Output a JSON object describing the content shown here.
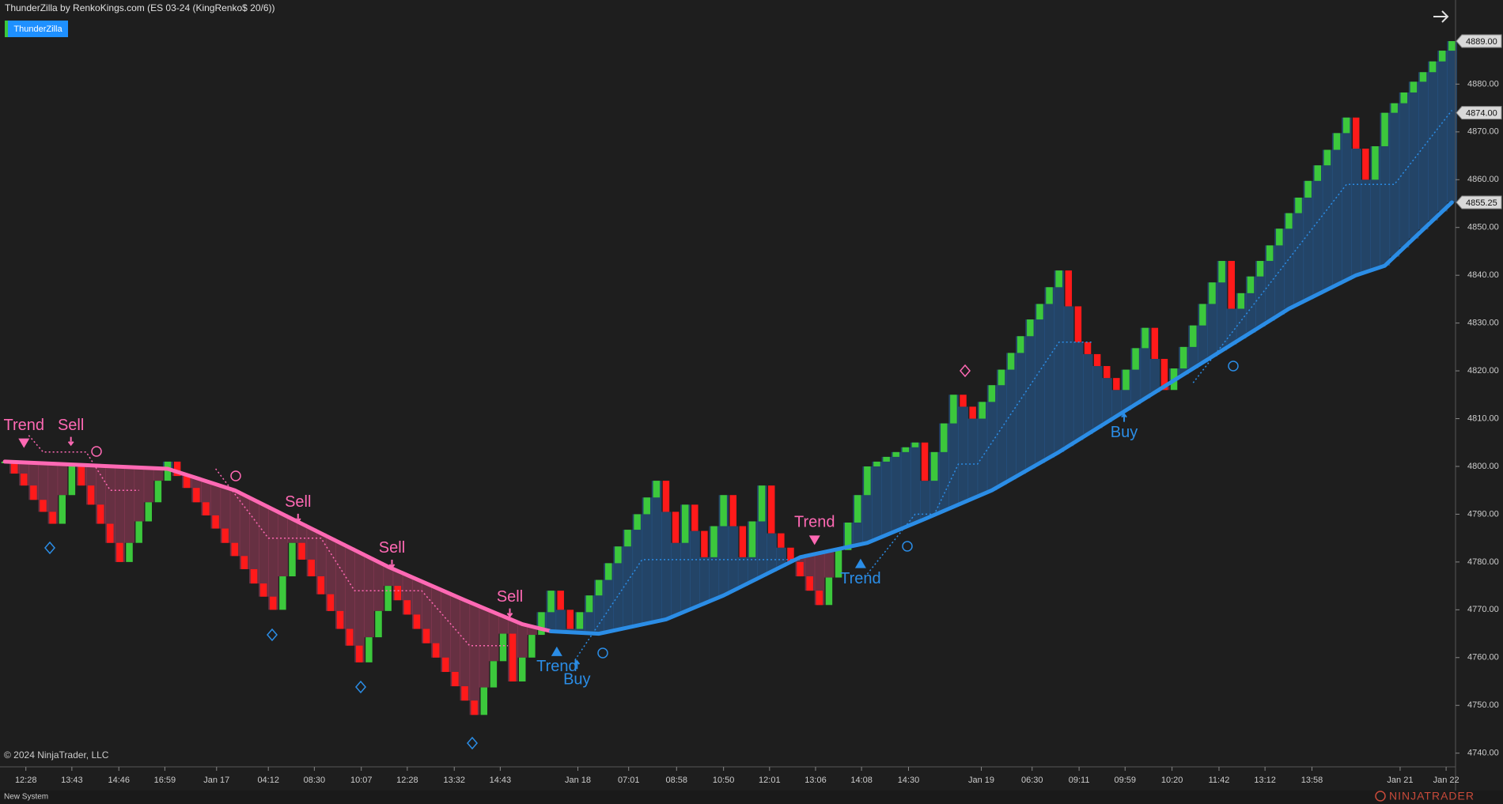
{
  "window": {
    "header": "ThunderZilla by RenkoKings.com (ES 03-24 (KingRenko$ 20/6))",
    "indicator_button": "ThunderZilla",
    "copyright": "© 2024 NinjaTrader, LLC",
    "tab": "New System",
    "logo": "NINJATRADER"
  },
  "chart_data": {
    "type": "renko",
    "up_color": "#3cc83c",
    "down_color": "#ff1a1a",
    "fill_colors": {
      "below": "rgba(190,70,110,0.45)",
      "above": "rgba(40,105,175,0.5)"
    },
    "xlim": [
      -0.5,
      151.3
    ],
    "ylim": [
      4737.3,
      4897.6
    ],
    "xticks": [
      {
        "value": 2.2,
        "label": "12:28"
      },
      {
        "value": 7,
        "label": "13:43"
      },
      {
        "value": 11.9,
        "label": "14:46"
      },
      {
        "value": 16.7,
        "label": "16:59"
      },
      {
        "value": 22.1,
        "label": "Jan 17"
      },
      {
        "value": 27.5,
        "label": "04:12"
      },
      {
        "value": 32.3,
        "label": "08:30"
      },
      {
        "value": 37.2,
        "label": "10:07"
      },
      {
        "value": 42,
        "label": "12:28"
      },
      {
        "value": 46.9,
        "label": "13:32"
      },
      {
        "value": 51.7,
        "label": "14:43"
      },
      {
        "value": 59.8,
        "label": "Jan 18"
      },
      {
        "value": 65.1,
        "label": "07:01"
      },
      {
        "value": 70.1,
        "label": "08:58"
      },
      {
        "value": 75,
        "label": "10:50"
      },
      {
        "value": 79.8,
        "label": "12:01"
      },
      {
        "value": 84.6,
        "label": "13:06"
      },
      {
        "value": 89.4,
        "label": "14:08"
      },
      {
        "value": 94.3,
        "label": "14:30"
      },
      {
        "value": 101.9,
        "label": "Jan 19"
      },
      {
        "value": 107.2,
        "label": "06:30"
      },
      {
        "value": 112.1,
        "label": "09:11"
      },
      {
        "value": 116.9,
        "label": "09:59"
      },
      {
        "value": 121.8,
        "label": "10:20"
      },
      {
        "value": 126.7,
        "label": "11:42"
      },
      {
        "value": 131.5,
        "label": "13:12"
      },
      {
        "value": 136.4,
        "label": "13:58"
      },
      {
        "value": 145.6,
        "label": "Jan 21"
      },
      {
        "value": 150.4,
        "label": "Jan 22"
      }
    ],
    "yticks": [
      {
        "value": 4740,
        "label": "4740.00"
      },
      {
        "value": 4750,
        "label": "4750.00"
      },
      {
        "value": 4760,
        "label": "4760.00"
      },
      {
        "value": 4770,
        "label": "4770.00"
      },
      {
        "value": 4780,
        "label": "4780.00"
      },
      {
        "value": 4790,
        "label": "4790.00"
      },
      {
        "value": 4800,
        "label": "4800.00"
      },
      {
        "value": 4810,
        "label": "4810.00"
      },
      {
        "value": 4820,
        "label": "4820.00"
      },
      {
        "value": 4830,
        "label": "4830.00"
      },
      {
        "value": 4840,
        "label": "4840.00"
      },
      {
        "value": 4850,
        "label": "4850.00"
      },
      {
        "value": 4860,
        "label": "4860.00"
      },
      {
        "value": 4870,
        "label": "4870.00"
      },
      {
        "value": 4880,
        "label": "4880.00"
      }
    ],
    "price_tags": [
      {
        "value": 4889,
        "label": "4889.00"
      },
      {
        "value": 4874,
        "label": "4874.00"
      },
      {
        "value": 4855.25,
        "label": "4855.25"
      }
    ],
    "values": [
      4801,
      4798.5,
      4796,
      4793,
      4790.5,
      4788,
      4794,
      4800,
      4796,
      4792,
      4788,
      4784,
      4780,
      4784,
      4788.5,
      4792.5,
      4797,
      4801,
      4798,
      4795.5,
      4792.5,
      4789.75,
      4787,
      4784,
      4781.25,
      4778.5,
      4775.5,
      4772.75,
      4770,
      4777,
      4784,
      4780.5,
      4777,
      4773.25,
      4769.75,
      4766,
      4762.5,
      4759,
      4764.25,
      4769.75,
      4775,
      4772,
      4769,
      4766,
      4763,
      4760,
      4757,
      4754,
      4751,
      4748,
      4753.75,
      4759.25,
      4765,
      4755,
      4760,
      4764.75,
      4769.5,
      4774,
      4770,
      4766,
      4769.5,
      4773,
      4776.25,
      4779.75,
      4783.25,
      4786.75,
      4790,
      4793.5,
      4797,
      4790.5,
      4784,
      4792,
      4786.5,
      4781,
      4787.5,
      4794,
      4787.5,
      4781,
      4788.5,
      4796,
      4786,
      4783,
      4780,
      4777,
      4774,
      4771,
      4776.75,
      4782.5,
      4788.25,
      4794,
      4800,
      4801,
      4802,
      4803,
      4804,
      4805,
      4797,
      4803,
      4809,
      4815,
      4812.5,
      4810,
      4813.5,
      4817,
      4820.25,
      4823.75,
      4827.25,
      4830.75,
      4834,
      4837.5,
      4841,
      4833.5,
      4826,
      4823.5,
      4821,
      4818.5,
      4816,
      4820.25,
      4824.75,
      4829,
      4822.5,
      4816,
      4820.5,
      4825,
      4829.5,
      4834,
      4838.5,
      4843,
      4833,
      4836.25,
      4839.75,
      4843,
      4846.25,
      4849.75,
      4853,
      4856.25,
      4859.75,
      4863,
      4866.25,
      4869.75,
      4873,
      4866.5,
      4860,
      4867,
      4874,
      4876,
      4878.25,
      4880.5,
      4882.5,
      4884.75,
      4887,
      4889
    ],
    "lines": [
      {
        "color": "#ff69b4",
        "width": 5,
        "style": "solid",
        "x": [
          0,
          17,
          24,
          30,
          40,
          48,
          54,
          57
        ],
        "values": [
          4801,
          4799.5,
          4795,
          4789,
          4779,
          4772,
          4767,
          4765.5
        ]
      },
      {
        "color": "#2b8de6",
        "width": 5,
        "style": "solid",
        "x": [
          57,
          62,
          69,
          75,
          83,
          90,
          96,
          103,
          110,
          118,
          126,
          134,
          141,
          144,
          151
        ],
        "values": [
          4765.5,
          4765,
          4768,
          4773,
          4781,
          4784,
          4789,
          4795,
          4803,
          4813,
          4823,
          4833,
          4840,
          4842,
          4855.25
        ]
      },
      {
        "color": "#ff69b4",
        "width": 1.5,
        "style": "dotted",
        "x": [
          2.5,
          4,
          8.5,
          11,
          14
        ],
        "values": [
          4806.5,
          4803,
          4803,
          4795,
          4795
        ]
      },
      {
        "color": "#ff69b4",
        "width": 1.5,
        "style": "dotted",
        "x": [
          22,
          27.5,
          33,
          36.5,
          43.5,
          48.5,
          52.5
        ],
        "values": [
          4799.5,
          4785,
          4785,
          4774,
          4774,
          4762.5,
          4762.5
        ]
      },
      {
        "color": "#2b8de6",
        "width": 1.5,
        "style": "dotted",
        "x": [
          59.5,
          66.5,
          83
        ],
        "values": [
          4759.5,
          4780.5,
          4780.5
        ]
      },
      {
        "color": "#2b8de6",
        "width": 1.5,
        "style": "dotted",
        "x": [
          90,
          95,
          97,
          99.5,
          101.5,
          110,
          113.5
        ],
        "values": [
          4777.5,
          4790,
          4790,
          4800.5,
          4800.5,
          4826,
          4826
        ]
      },
      {
        "color": "#2b8de6",
        "width": 1.5,
        "style": "dotted",
        "x": [
          124,
          140,
          145,
          151
        ],
        "values": [
          4817.5,
          4859,
          4859,
          4874.5
        ]
      }
    ],
    "annotations": [
      {
        "text": "Trend",
        "x": 2,
        "y": 4808.5,
        "color": "#ff69b4",
        "marker": "down"
      },
      {
        "text": "Sell",
        "x": 6.9,
        "y": 4808.5,
        "color": "#ff69b4",
        "marker": "arrow"
      },
      {
        "text": "Sell",
        "x": 30.6,
        "y": 4792.4,
        "color": "#ff69b4",
        "marker": "arrow"
      },
      {
        "text": "Sell",
        "x": 40.4,
        "y": 4782.8,
        "color": "#ff69b4",
        "marker": "arrow"
      },
      {
        "text": "Sell",
        "x": 52.7,
        "y": 4772.6,
        "color": "#ff69b4",
        "marker": "arrow"
      },
      {
        "text": "Trend",
        "x": 84.5,
        "y": 4788.2,
        "color": "#ff69b4",
        "marker": "down"
      },
      {
        "text": "Trend",
        "x": 57.6,
        "y": 4758,
        "color": "#2b8de6",
        "marker": "up"
      },
      {
        "text": "Buy",
        "x": 59.7,
        "y": 4755.3,
        "color": "#2b8de6",
        "marker": "uparrow"
      },
      {
        "text": "Trend",
        "x": 89.3,
        "y": 4776.4,
        "color": "#2b8de6",
        "marker": "up"
      },
      {
        "text": "Buy",
        "x": 116.8,
        "y": 4807,
        "color": "#2b8de6",
        "marker": "uparrow"
      }
    ]
  }
}
